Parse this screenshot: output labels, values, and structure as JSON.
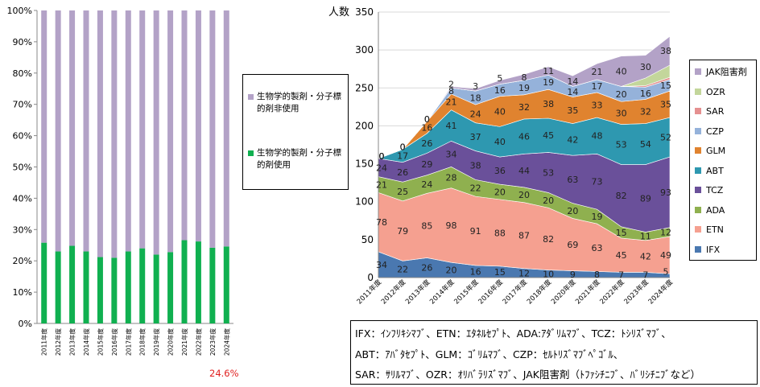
{
  "chart_data": [
    {
      "type": "bar",
      "stacked": true,
      "categories": [
        "2011年度",
        "2012年度",
        "2013年度",
        "2014年度",
        "2015年度",
        "2016年度",
        "2017年度",
        "2018年度",
        "2019年度",
        "2020年度",
        "2021年度",
        "2022年度",
        "2023年度",
        "2024年度"
      ],
      "series": [
        {
          "name": "生物学的製剤・分子標的剤使用",
          "color": "#10b050",
          "values": [
            25.8,
            23.0,
            24.8,
            23.0,
            21.2,
            21.0,
            23.0,
            24.0,
            22.0,
            22.8,
            26.6,
            26.2,
            24.2,
            24.6
          ]
        },
        {
          "name": "生物学的製剤・分子標的剤非使用",
          "color": "#b3a2c7",
          "values": [
            74.2,
            77.0,
            75.2,
            77.0,
            78.8,
            79.0,
            77.0,
            76.0,
            78.0,
            77.2,
            73.4,
            73.8,
            75.8,
            75.4
          ]
        }
      ],
      "yticks": [
        "0%",
        "10%",
        "20%",
        "30%",
        "40%",
        "50%",
        "60%",
        "70%",
        "80%",
        "90%",
        "100%"
      ],
      "ylim": [
        0,
        100
      ],
      "annotation": "24.6%"
    },
    {
      "type": "area",
      "stacked": true,
      "ylabel": "人数",
      "ylim": [
        0,
        350
      ],
      "yticks": [
        "0",
        "50",
        "100",
        "150",
        "200",
        "250",
        "300",
        "350"
      ],
      "categories": [
        "2011年度",
        "2012年度",
        "2013年度",
        "2014年度",
        "2015年度",
        "2016年度",
        "2017年度",
        "2018年度",
        "2020年度",
        "2021年度",
        "2022年度",
        "2023年度",
        "2024年度"
      ],
      "series": [
        {
          "name": "IFX",
          "color": "#4a78b0",
          "labels": [
            "34",
            "22",
            "26",
            "20",
            "16",
            "15",
            "12",
            "10",
            "9",
            "8",
            "7",
            "7",
            "5"
          ]
        },
        {
          "name": "ETN",
          "color": "#f5a090",
          "labels": [
            "78",
            "79",
            "85",
            "98",
            "91",
            "88",
            "87",
            "82",
            "69",
            "63",
            "45",
            "42",
            "49"
          ]
        },
        {
          "name": "ADA",
          "color": "#8fb04f",
          "labels": [
            "21",
            "25",
            "24",
            "28",
            "22",
            "20",
            "20",
            "20",
            "20",
            "19",
            "15",
            "11",
            "12"
          ]
        },
        {
          "name": "TCZ",
          "color": "#6a509a",
          "labels": [
            "24",
            "26",
            "29",
            "34",
            "38",
            "36",
            "44",
            "53",
            "63",
            "73",
            "82",
            "89",
            "93"
          ]
        },
        {
          "name": "ABT",
          "color": "#2e98b0",
          "labels": [
            "0",
            "17",
            "26",
            "41",
            "37",
            "40",
            "46",
            "45",
            "42",
            "48",
            "53",
            "54",
            "52"
          ]
        },
        {
          "name": "GLM",
          "color": "#e0832f",
          "labels": [
            "0",
            "0",
            "16",
            "21",
            "24",
            "40",
            "32",
            "38",
            "35",
            "33",
            "30",
            "32",
            "35"
          ]
        },
        {
          "name": "CZP",
          "color": "#95b2da",
          "labels": [
            "0",
            "0",
            "0",
            "8",
            "18",
            "16",
            "19",
            "19",
            "14",
            "17",
            "20",
            "16",
            "15"
          ]
        },
        {
          "name": "SAR",
          "color": "#e59090",
          "labels": [
            "",
            "",
            "",
            "",
            "",
            "",
            "",
            "",
            "",
            "",
            "",
            "",
            ""
          ]
        },
        {
          "name": "OZR",
          "color": "#c3d69b",
          "labels": [
            "",
            "",
            "",
            "",
            "",
            "",
            "",
            "",
            "",
            "",
            "",
            "",
            ""
          ]
        },
        {
          "name": "JAK阻害剤",
          "color": "#b3a2c7",
          "labels": [
            "0",
            "0",
            "0",
            "2",
            "3",
            "5",
            "8",
            "11",
            "14",
            "21",
            "40",
            "30",
            "38"
          ]
        }
      ],
      "stack_values": [
        [
          34,
          22,
          26,
          20,
          16,
          15,
          12,
          10,
          9,
          8,
          7,
          7,
          5
        ],
        [
          78,
          79,
          85,
          98,
          91,
          88,
          87,
          82,
          69,
          63,
          45,
          42,
          49
        ],
        [
          21,
          25,
          24,
          28,
          22,
          20,
          20,
          20,
          20,
          19,
          15,
          11,
          12
        ],
        [
          24,
          26,
          29,
          34,
          38,
          36,
          44,
          53,
          63,
          73,
          82,
          89,
          93
        ],
        [
          0,
          17,
          26,
          41,
          37,
          40,
          46,
          45,
          42,
          48,
          53,
          54,
          52
        ],
        [
          0,
          0,
          16,
          21,
          24,
          40,
          32,
          38,
          35,
          33,
          30,
          32,
          35
        ],
        [
          0,
          0,
          0,
          8,
          18,
          16,
          19,
          19,
          14,
          17,
          20,
          16,
          15
        ],
        [
          0,
          0,
          0,
          0,
          0,
          0,
          0,
          0,
          0,
          0,
          0,
          2,
          3
        ],
        [
          0,
          0,
          0,
          0,
          0,
          0,
          0,
          0,
          0,
          0,
          0,
          10,
          16
        ],
        [
          0,
          0,
          0,
          2,
          3,
          5,
          8,
          11,
          14,
          21,
          40,
          30,
          38
        ]
      ]
    }
  ],
  "left_legend": [
    {
      "label": "生物学的製剤・分子標的剤非使用",
      "color": "#b3a2c7"
    },
    {
      "label": "生物学的製剤・分子標的剤使用",
      "color": "#10b050"
    }
  ],
  "left_note": "24.6%",
  "right_unit": "人数",
  "right_legend": [
    "JAK阻害剤",
    "OZR",
    "SAR",
    "CZP",
    "GLM",
    "ABT",
    "TCZ",
    "ADA",
    "ETN",
    "IFX"
  ],
  "abbreviations": {
    "line1": "IFX：ｲﾝﾌﾘｷｼﾏﾌﾞ、ETN：ｴﾀﾈﾙｾﾌﾟﾄ、ADA:ｱﾀﾞﾘﾑﾏﾌﾞ、TCZ：ﾄｼﾘｽﾞﾏﾌﾞ、",
    "line2": "ABT：ｱﾊﾞﾀｾﾌﾟﾄ、GLM：ｺﾞﾘﾑﾏﾌﾞ、CZP：ｾﾙﾄﾘｽﾞﾏﾌﾞﾍﾟｺﾞﾙ、",
    "line3": "SAR：ｻﾘﾙﾏﾌﾞ、OZR：ｵﾘﾊﾞﾗﾘｽﾞﾏﾌﾞ、JAK阻害剤（ﾄﾌｧｼﾁﾆﾌﾞ、ﾊﾞﾘｼﾁﾆﾌﾞなど）"
  }
}
